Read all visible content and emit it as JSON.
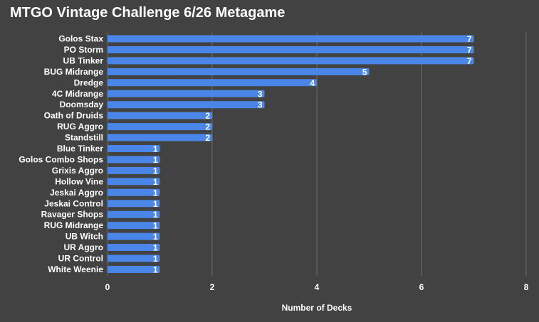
{
  "chart_data": {
    "type": "bar",
    "orientation": "horizontal",
    "title": "MTGO Vintage Challenge 6/26 Metagame",
    "xlabel": "Number of Decks",
    "ylabel": "",
    "xlim": [
      0,
      8
    ],
    "xticks": [
      0,
      2,
      4,
      6,
      8
    ],
    "grid": true,
    "legend": "none",
    "bar_color": "#4a86e8",
    "background_color": "#424242",
    "categories": [
      "Golos Stax",
      "PO Storm",
      "UB Tinker",
      "BUG Midrange",
      "Dredge",
      "4C Midrange",
      "Doomsday",
      "Oath of Druids",
      "RUG Aggro",
      "Standstill",
      "Blue Tinker",
      "Golos Combo Shops",
      "Grixis Aggro",
      "Hollow Vine",
      "Jeskai Aggro",
      "Jeskai Control",
      "Ravager Shops",
      "RUG Midrange",
      "UB Witch",
      "UR Aggro",
      "UR Control",
      "White Weenie"
    ],
    "values": [
      7,
      7,
      7,
      5,
      4,
      3,
      3,
      2,
      2,
      2,
      1,
      1,
      1,
      1,
      1,
      1,
      1,
      1,
      1,
      1,
      1,
      1
    ]
  }
}
